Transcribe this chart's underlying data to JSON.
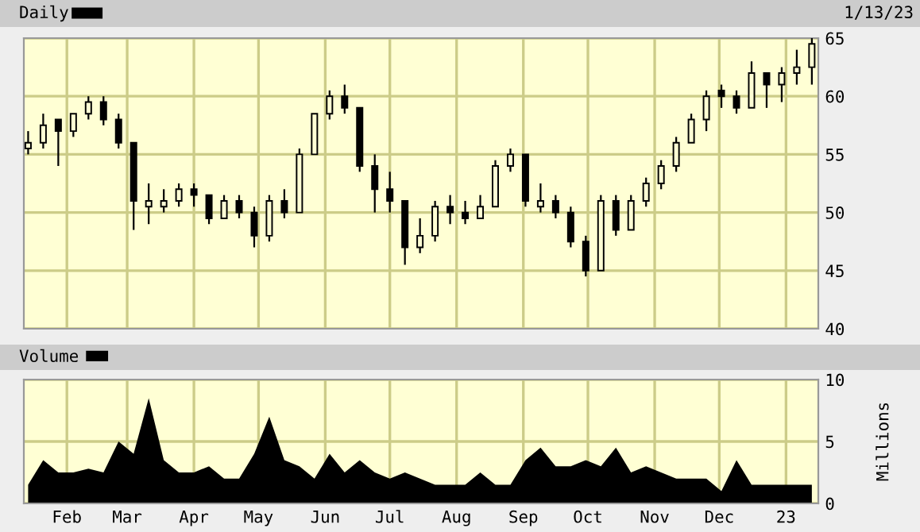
{
  "chart_data": [
    {
      "type": "candlestick",
      "annotations": [
        "1/13/23"
      ],
      "legend": "top left",
      "grid": true,
      "tick_labels": "y",
      "x": [
        "2022-01-14",
        "2022-01-21",
        "2022-01-28",
        "2022-02-04",
        "2022-02-11",
        "2022-02-18",
        "2022-02-25",
        "2022-03-04",
        "2022-03-11",
        "2022-03-18",
        "2022-03-25",
        "2022-04-01",
        "2022-04-08",
        "2022-04-15",
        "2022-04-22",
        "2022-04-29",
        "2022-05-06",
        "2022-05-13",
        "2022-05-20",
        "2022-05-27",
        "2022-06-03",
        "2022-06-10",
        "2022-06-17",
        "2022-06-24",
        "2022-07-01",
        "2022-07-08",
        "2022-07-15",
        "2022-07-22",
        "2022-07-29",
        "2022-08-05",
        "2022-08-12",
        "2022-08-19",
        "2022-08-26",
        "2022-09-02",
        "2022-09-09",
        "2022-09-16",
        "2022-09-23",
        "2022-09-30",
        "2022-10-07",
        "2022-10-14",
        "2022-10-21",
        "2022-10-28",
        "2022-11-04",
        "2022-11-11",
        "2022-11-18",
        "2022-11-25",
        "2022-12-02",
        "2022-12-09",
        "2022-12-16",
        "2022-12-23",
        "2022-12-30",
        "2023-01-06",
        "2023-01-13"
      ],
      "series": [
        {
          "name": "Daily",
          "color": "#000000",
          "ohlc": [
            [
              55.5,
              57,
              55,
              56
            ],
            [
              56,
              58.5,
              55.5,
              57.5
            ],
            [
              58,
              58,
              54,
              57
            ],
            [
              57,
              58.5,
              56.5,
              58.5
            ],
            [
              58.5,
              60,
              58,
              59.5
            ],
            [
              59.5,
              60,
              57.5,
              58
            ],
            [
              58,
              58.5,
              55.5,
              56
            ],
            [
              56,
              56,
              48.5,
              51
            ],
            [
              50.5,
              52.5,
              49,
              51
            ],
            [
              50.5,
              52,
              50,
              51
            ],
            [
              51,
              52.5,
              50.5,
              52
            ],
            [
              52,
              52.5,
              50.5,
              51.5
            ],
            [
              51.5,
              51.5,
              49,
              49.5
            ],
            [
              49.5,
              51.5,
              49.5,
              51
            ],
            [
              51,
              51.5,
              49.5,
              50
            ],
            [
              50,
              50.5,
              47,
              48
            ],
            [
              48,
              51.5,
              47.5,
              51
            ],
            [
              51,
              52,
              49.5,
              50
            ],
            [
              50,
              55.5,
              50,
              55
            ],
            [
              55,
              58.5,
              55,
              58.5
            ],
            [
              58.5,
              60.5,
              58,
              60
            ],
            [
              60,
              61,
              58.5,
              59
            ],
            [
              59,
              59,
              53.5,
              54
            ],
            [
              54,
              55,
              50,
              52
            ],
            [
              52,
              53.5,
              50,
              51
            ],
            [
              51,
              51,
              45.5,
              47
            ],
            [
              47,
              49.5,
              46.5,
              48
            ],
            [
              48,
              51,
              47.5,
              50.5
            ],
            [
              50.5,
              51.5,
              49,
              50
            ],
            [
              50,
              51,
              49,
              49.5
            ],
            [
              49.5,
              51.5,
              49.5,
              50.5
            ],
            [
              50.5,
              54.5,
              50.5,
              54
            ],
            [
              54,
              55.5,
              53.5,
              55
            ],
            [
              55,
              55,
              50.5,
              51
            ],
            [
              50.5,
              52.5,
              50,
              51
            ],
            [
              51,
              51.5,
              49.5,
              50
            ],
            [
              50,
              50.5,
              47,
              47.5
            ],
            [
              47.5,
              48,
              44.5,
              45
            ],
            [
              45,
              51.5,
              45,
              51
            ],
            [
              51,
              51.5,
              48,
              48.5
            ],
            [
              48.5,
              51.5,
              48.5,
              51
            ],
            [
              51,
              53,
              50.5,
              52.5
            ],
            [
              52.5,
              54.5,
              52,
              54
            ],
            [
              54,
              56.5,
              53.5,
              56
            ],
            [
              56,
              58.5,
              56,
              58
            ],
            [
              58,
              60.5,
              57,
              60
            ],
            [
              60.5,
              61,
              59,
              60
            ],
            [
              60,
              60.5,
              58.5,
              59
            ],
            [
              59,
              63,
              59,
              62
            ],
            [
              62,
              62,
              59,
              61
            ],
            [
              61,
              62.5,
              59.5,
              62
            ],
            [
              62,
              64,
              61,
              62.5
            ],
            [
              62.5,
              65,
              61,
              64.5
            ]
          ]
        }
      ],
      "ylim": [
        40,
        65
      ],
      "yticks": [
        40,
        45,
        50,
        55,
        60,
        65
      ],
      "xlim": [
        "2022-01-12",
        "2023-01-16"
      ],
      "xticks": [
        {
          "value": "2022-02-01",
          "label": null
        },
        {
          "value": "2022-03-01",
          "label": null
        },
        {
          "value": "2022-04-01",
          "label": null
        },
        {
          "value": "2022-05-01",
          "label": null
        },
        {
          "value": "2022-06-01",
          "label": null
        },
        {
          "value": "2022-07-01",
          "label": null
        },
        {
          "value": "2022-08-01",
          "label": null
        },
        {
          "value": "2022-09-01",
          "label": null
        },
        {
          "value": "2022-10-01",
          "label": null
        },
        {
          "value": "2022-11-01",
          "label": null
        },
        {
          "value": "2022-12-01",
          "label": null
        },
        {
          "value": "2023-01-01",
          "label": null
        }
      ]
    },
    {
      "type": "area",
      "ylabel": "Millions",
      "legend": "top left",
      "grid": true,
      "x": [
        "2022-01-14",
        "2022-01-21",
        "2022-01-28",
        "2022-02-04",
        "2022-02-11",
        "2022-02-18",
        "2022-02-25",
        "2022-03-04",
        "2022-03-11",
        "2022-03-18",
        "2022-03-25",
        "2022-04-01",
        "2022-04-08",
        "2022-04-15",
        "2022-04-22",
        "2022-04-29",
        "2022-05-06",
        "2022-05-13",
        "2022-05-20",
        "2022-05-27",
        "2022-06-03",
        "2022-06-10",
        "2022-06-17",
        "2022-06-24",
        "2022-07-01",
        "2022-07-08",
        "2022-07-15",
        "2022-07-22",
        "2022-07-29",
        "2022-08-05",
        "2022-08-12",
        "2022-08-19",
        "2022-08-26",
        "2022-09-02",
        "2022-09-09",
        "2022-09-16",
        "2022-09-23",
        "2022-09-30",
        "2022-10-07",
        "2022-10-14",
        "2022-10-21",
        "2022-10-28",
        "2022-11-04",
        "2022-11-11",
        "2022-11-18",
        "2022-11-25",
        "2022-12-02",
        "2022-12-09",
        "2022-12-16",
        "2022-12-23",
        "2022-12-30",
        "2023-01-06",
        "2023-01-13"
      ],
      "series": [
        {
          "name": "Volume",
          "color": "#000000",
          "values": [
            1.5,
            3.5,
            2.5,
            2.5,
            2.8,
            2.5,
            5,
            4,
            8.5,
            3.5,
            2.5,
            2.5,
            3,
            2,
            2,
            4,
            7,
            3.5,
            3,
            2,
            4,
            2.5,
            3.5,
            2.5,
            2,
            2.5,
            2,
            1.5,
            1.5,
            1.5,
            2.5,
            1.5,
            1.5,
            3.5,
            4.5,
            3,
            3,
            3.5,
            3,
            4.5,
            2.5,
            3,
            2.5,
            2,
            2,
            2,
            1,
            3.5,
            1.5,
            1.5,
            1.5,
            1.5,
            1.5
          ]
        }
      ],
      "ylim": [
        0,
        10
      ],
      "yticks": [
        0,
        5,
        10
      ],
      "xlim": [
        "2022-01-12",
        "2023-01-16"
      ],
      "xticks": [
        {
          "value": "2022-02-01",
          "label": "Feb"
        },
        {
          "value": "2022-03-01",
          "label": "Mar"
        },
        {
          "value": "2022-04-01",
          "label": "Apr"
        },
        {
          "value": "2022-05-01",
          "label": "May"
        },
        {
          "value": "2022-06-01",
          "label": "Jun"
        },
        {
          "value": "2022-07-01",
          "label": "Jul"
        },
        {
          "value": "2022-08-01",
          "label": "Aug"
        },
        {
          "value": "2022-09-01",
          "label": "Sep"
        },
        {
          "value": "2022-10-01",
          "label": "Oct"
        },
        {
          "value": "2022-11-01",
          "label": "Nov"
        },
        {
          "value": "2022-12-01",
          "label": "Dec"
        },
        {
          "value": "2023-01-01",
          "label": "23"
        }
      ]
    }
  ]
}
